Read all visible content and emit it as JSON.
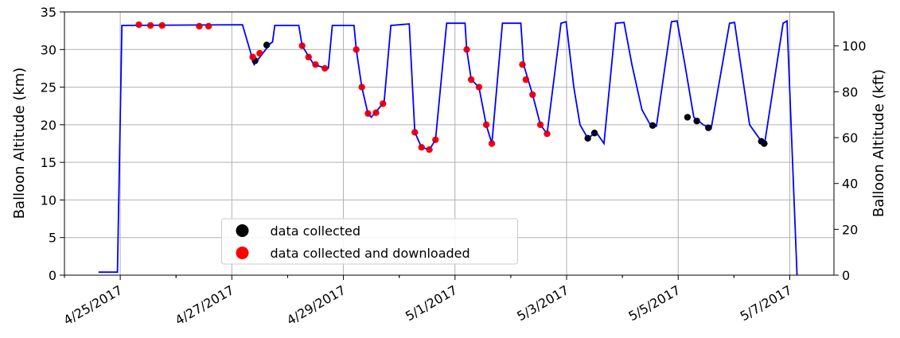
{
  "chart_data": {
    "type": "line",
    "ylabel": "Balloon Altitude (km)",
    "y2label": "Balloon Altitude (kft)",
    "xlim": [
      "2017-04-24T00:00",
      "2017-05-07T19:00"
    ],
    "xticks": [
      {
        "value": "2017-04-25T00:00",
        "label": "4/25/2017"
      },
      {
        "value": "2017-04-27T00:00",
        "label": "4/27/2017"
      },
      {
        "value": "2017-04-29T00:00",
        "label": "4/29/2017"
      },
      {
        "value": "2017-05-01T00:00",
        "label": "5/1/2017"
      },
      {
        "value": "2017-05-03T00:00",
        "label": "5/3/2017"
      },
      {
        "value": "2017-05-05T00:00",
        "label": "5/5/2017"
      },
      {
        "value": "2017-05-07T00:00",
        "label": "5/7/2017"
      }
    ],
    "ylim": [
      0,
      35
    ],
    "yticks": [
      0,
      5,
      10,
      15,
      20,
      25,
      30,
      35
    ],
    "y2lim": [
      0,
      114.83
    ],
    "y2ticks": [
      0,
      20,
      40,
      60,
      80,
      100
    ],
    "grid": true,
    "legend": "lower center",
    "line": {
      "color": "#0000ff",
      "x": [
        "2017-04-24T14:38",
        "2017-04-24T22:48",
        "2017-04-25T00:43",
        "2017-04-27T04:34",
        "2017-04-27T09:36",
        "2017-04-27T16:34",
        "2017-04-27T17:31",
        "2017-04-27T18:29",
        "2017-04-28T04:48",
        "2017-04-28T06:14",
        "2017-04-28T11:17",
        "2017-04-28T16:34",
        "2017-04-28T17:31",
        "2017-04-28T19:12",
        "2017-04-29T04:34",
        "2017-04-29T05:31",
        "2017-04-29T07:55",
        "2017-04-29T10:34",
        "2017-04-29T12:00",
        "2017-04-29T17:31",
        "2017-04-29T20:24",
        "2017-04-30T04:19",
        "2017-04-30T06:43",
        "2017-04-30T09:36",
        "2017-04-30T12:58",
        "2017-04-30T15:36",
        "2017-04-30T20:24",
        "2017-05-01T04:19",
        "2017-05-01T05:02",
        "2017-05-01T06:58",
        "2017-05-01T10:19",
        "2017-05-01T13:26",
        "2017-05-01T15:50",
        "2017-05-01T20:24",
        "2017-05-02T04:19",
        "2017-05-02T05:31",
        "2017-05-02T09:22",
        "2017-05-02T12:43",
        "2017-05-02T15:36",
        "2017-05-02T21:36",
        "2017-05-02T23:46",
        "2017-05-03T03:07",
        "2017-05-03T05:46",
        "2017-05-03T09:07",
        "2017-05-03T12:43",
        "2017-05-03T16:05",
        "2017-05-03T21:07",
        "2017-05-04T00:43",
        "2017-05-04T04:05",
        "2017-05-04T08:24",
        "2017-05-04T12:00",
        "2017-05-04T14:38",
        "2017-05-04T21:07",
        "2017-05-04T23:31",
        "2017-05-05T02:53",
        "2017-05-05T06:43",
        "2017-05-05T10:48",
        "2017-05-05T14:10",
        "2017-05-05T22:05",
        "2017-05-06T00:14",
        "2017-05-06T02:53",
        "2017-05-06T06:43",
        "2017-05-06T11:46",
        "2017-05-06T13:12",
        "2017-05-06T21:07",
        "2017-05-06T22:48",
        "2017-05-07T03:07"
      ],
      "values": [
        0.4,
        0.4,
        33.2,
        33.3,
        28,
        30.8,
        31,
        33.2,
        33.2,
        30.5,
        28,
        27.5,
        27.5,
        33.2,
        33.2,
        30,
        25,
        21.5,
        21,
        23,
        33.2,
        33.4,
        19,
        17,
        16.7,
        18,
        33.5,
        33.5,
        30,
        26,
        25,
        20,
        17.5,
        33.5,
        33.5,
        28,
        24,
        20,
        18.8,
        33.5,
        33.7,
        25,
        20,
        18.2,
        19,
        17.5,
        33.5,
        33.6,
        28,
        22,
        20,
        19.8,
        33.7,
        33.8,
        28,
        21,
        20,
        19.5,
        33.5,
        33.6,
        28,
        20,
        17.8,
        17.5,
        33.5,
        33.8,
        0
      ]
    },
    "series": [
      {
        "name": "data collected",
        "color": "#000000",
        "x": [
          "2017-04-27T10:00",
          "2017-04-27T15:00",
          "2017-05-03T09:07",
          "2017-05-03T12:00",
          "2017-05-04T13:00",
          "2017-05-05T04:00",
          "2017-05-05T08:00",
          "2017-05-05T13:00",
          "2017-05-06T11:46",
          "2017-05-06T13:00"
        ],
        "values": [
          28.5,
          30.6,
          18.2,
          18.9,
          19.9,
          21,
          20.5,
          19.6,
          17.8,
          17.5
        ]
      },
      {
        "name": "data collected and downloaded",
        "color": "#ff0000",
        "x": [
          "2017-04-25T08:00",
          "2017-04-25T13:00",
          "2017-04-25T18:00",
          "2017-04-26T10:00",
          "2017-04-26T14:00",
          "2017-04-27T09:00",
          "2017-04-27T12:00",
          "2017-04-28T06:14",
          "2017-04-28T09:00",
          "2017-04-28T12:00",
          "2017-04-28T16:00",
          "2017-04-29T05:31",
          "2017-04-29T07:55",
          "2017-04-29T10:34",
          "2017-04-29T14:00",
          "2017-04-29T17:00",
          "2017-04-30T06:43",
          "2017-04-30T09:36",
          "2017-04-30T12:58",
          "2017-04-30T15:36",
          "2017-05-01T05:02",
          "2017-05-01T06:58",
          "2017-05-01T10:19",
          "2017-05-01T13:26",
          "2017-05-01T15:50",
          "2017-05-02T05:00",
          "2017-05-02T06:30",
          "2017-05-02T09:22",
          "2017-05-02T12:43",
          "2017-05-02T15:36"
        ],
        "values": [
          33.3,
          33.2,
          33.2,
          33.1,
          33.1,
          29,
          29.5,
          30.5,
          29,
          28,
          27.5,
          30,
          25,
          21.5,
          21.6,
          22.8,
          19,
          17,
          16.7,
          18,
          30,
          26,
          25,
          20,
          17.5,
          28,
          26,
          24,
          20,
          18.8
        ]
      }
    ]
  }
}
